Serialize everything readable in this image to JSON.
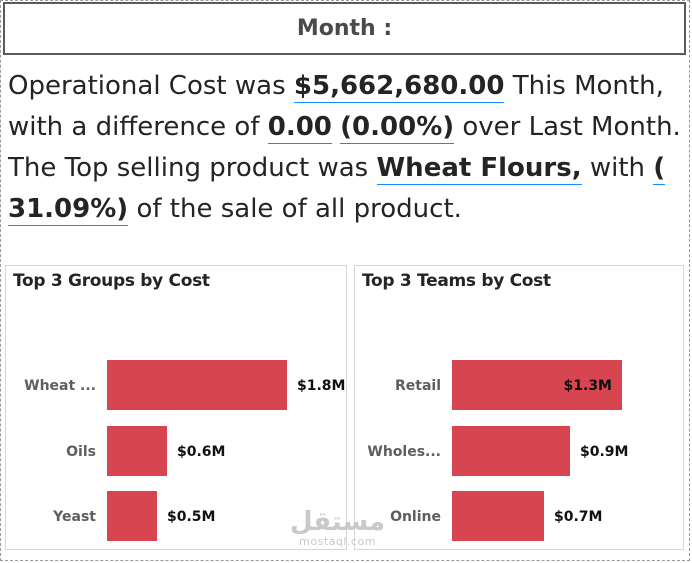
{
  "header": {
    "title": "Month :"
  },
  "narrative": {
    "t1": "Operational Cost  was ",
    "v1": "$5,662,680.00",
    "t2": " This Month, with a difference of ",
    "v2": "0.00",
    "t3": " ",
    "v3": "(0.00%)",
    "t4": " over Last Month. The Top selling product was ",
    "v4": "Wheat Flours,",
    "t5": " with ",
    "v5": "( 31.09%)",
    "t6": " of the sale of all product."
  },
  "colors": {
    "bar": "#d64550",
    "text": "#252423",
    "axis_label": "#605e5c"
  },
  "watermark": {
    "arabic": "مستقل",
    "latin": "mostaql.com"
  },
  "chart_data": [
    {
      "type": "bar",
      "orientation": "horizontal",
      "title": "Top 3 Groups by Cost",
      "categories": [
        "Wheat ...",
        "Oils",
        "Yeast"
      ],
      "values": [
        1.8,
        0.6,
        0.5
      ],
      "data_labels": [
        "$1.8M",
        "$0.6M",
        "$0.5M"
      ],
      "unit": "$M",
      "xlim": [
        0,
        1.8
      ]
    },
    {
      "type": "bar",
      "orientation": "horizontal",
      "title": "Top 3 Teams by Cost",
      "categories": [
        "Retail",
        "Wholes...",
        "Online"
      ],
      "values": [
        1.3,
        0.9,
        0.7
      ],
      "data_labels": [
        "$1.3M",
        "$0.9M",
        "$0.7M"
      ],
      "unit": "$M",
      "xlim": [
        0,
        1.3
      ]
    }
  ]
}
